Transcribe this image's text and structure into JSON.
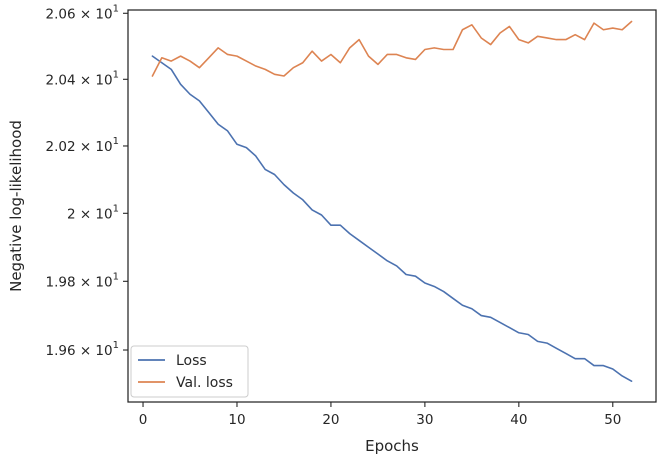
{
  "chart_data": {
    "type": "line",
    "title": "",
    "xlabel": "Epochs",
    "ylabel": "Negative log-likelihood",
    "xlim": [
      -1.6,
      54.6
    ],
    "ylim": [
      19.45,
      20.61
    ],
    "yscale": "log",
    "grid": false,
    "legend_position": "lower-left",
    "x_ticks": [
      0,
      10,
      20,
      30,
      40,
      50
    ],
    "x_tick_labels": [
      "0",
      "10",
      "20",
      "30",
      "40",
      "50"
    ],
    "y_ticks": [
      19.6,
      19.8,
      20.0,
      20.2,
      20.4,
      20.6
    ],
    "y_tick_labels": [
      {
        "mant": "1.96",
        "exp": "1"
      },
      {
        "mant": "1.98",
        "exp": "1"
      },
      {
        "mant": "2",
        "exp": "1"
      },
      {
        "mant": "2.02",
        "exp": "1"
      },
      {
        "mant": "2.04",
        "exp": "1"
      },
      {
        "mant": "2.06",
        "exp": "1"
      }
    ],
    "x": [
      1,
      2,
      3,
      4,
      5,
      6,
      7,
      8,
      9,
      10,
      11,
      12,
      13,
      14,
      15,
      16,
      17,
      18,
      19,
      20,
      21,
      22,
      23,
      24,
      25,
      26,
      27,
      28,
      29,
      30,
      31,
      32,
      33,
      34,
      35,
      36,
      37,
      38,
      39,
      40,
      41,
      42,
      43,
      44,
      45,
      46,
      47,
      48,
      49,
      50,
      51,
      52
    ],
    "series": [
      {
        "name": "Loss",
        "color": "#4c72b0",
        "values": [
          20.47,
          20.45,
          20.43,
          20.385,
          20.355,
          20.335,
          20.3,
          20.265,
          20.245,
          20.205,
          20.195,
          20.17,
          20.13,
          20.115,
          20.085,
          20.06,
          20.04,
          20.01,
          19.995,
          19.965,
          19.965,
          19.94,
          19.92,
          19.9,
          19.88,
          19.86,
          19.845,
          19.82,
          19.815,
          19.795,
          19.785,
          19.77,
          19.75,
          19.73,
          19.72,
          19.7,
          19.695,
          19.68,
          19.665,
          19.65,
          19.645,
          19.625,
          19.62,
          19.605,
          19.59,
          19.575,
          19.575,
          19.555,
          19.555,
          19.545,
          19.525,
          19.51
        ]
      },
      {
        "name": "Val. loss",
        "color": "#dd8452",
        "values": [
          20.41,
          20.465,
          20.455,
          20.47,
          20.455,
          20.435,
          20.465,
          20.495,
          20.475,
          20.47,
          20.455,
          20.44,
          20.43,
          20.415,
          20.41,
          20.435,
          20.45,
          20.485,
          20.455,
          20.475,
          20.45,
          20.495,
          20.52,
          20.47,
          20.445,
          20.475,
          20.475,
          20.465,
          20.46,
          20.49,
          20.495,
          20.49,
          20.49,
          20.55,
          20.565,
          20.525,
          20.505,
          20.54,
          20.56,
          20.52,
          20.51,
          20.53,
          20.525,
          20.52,
          20.52,
          20.535,
          20.52,
          20.57,
          20.55,
          20.555,
          20.55,
          20.575
        ]
      }
    ]
  }
}
